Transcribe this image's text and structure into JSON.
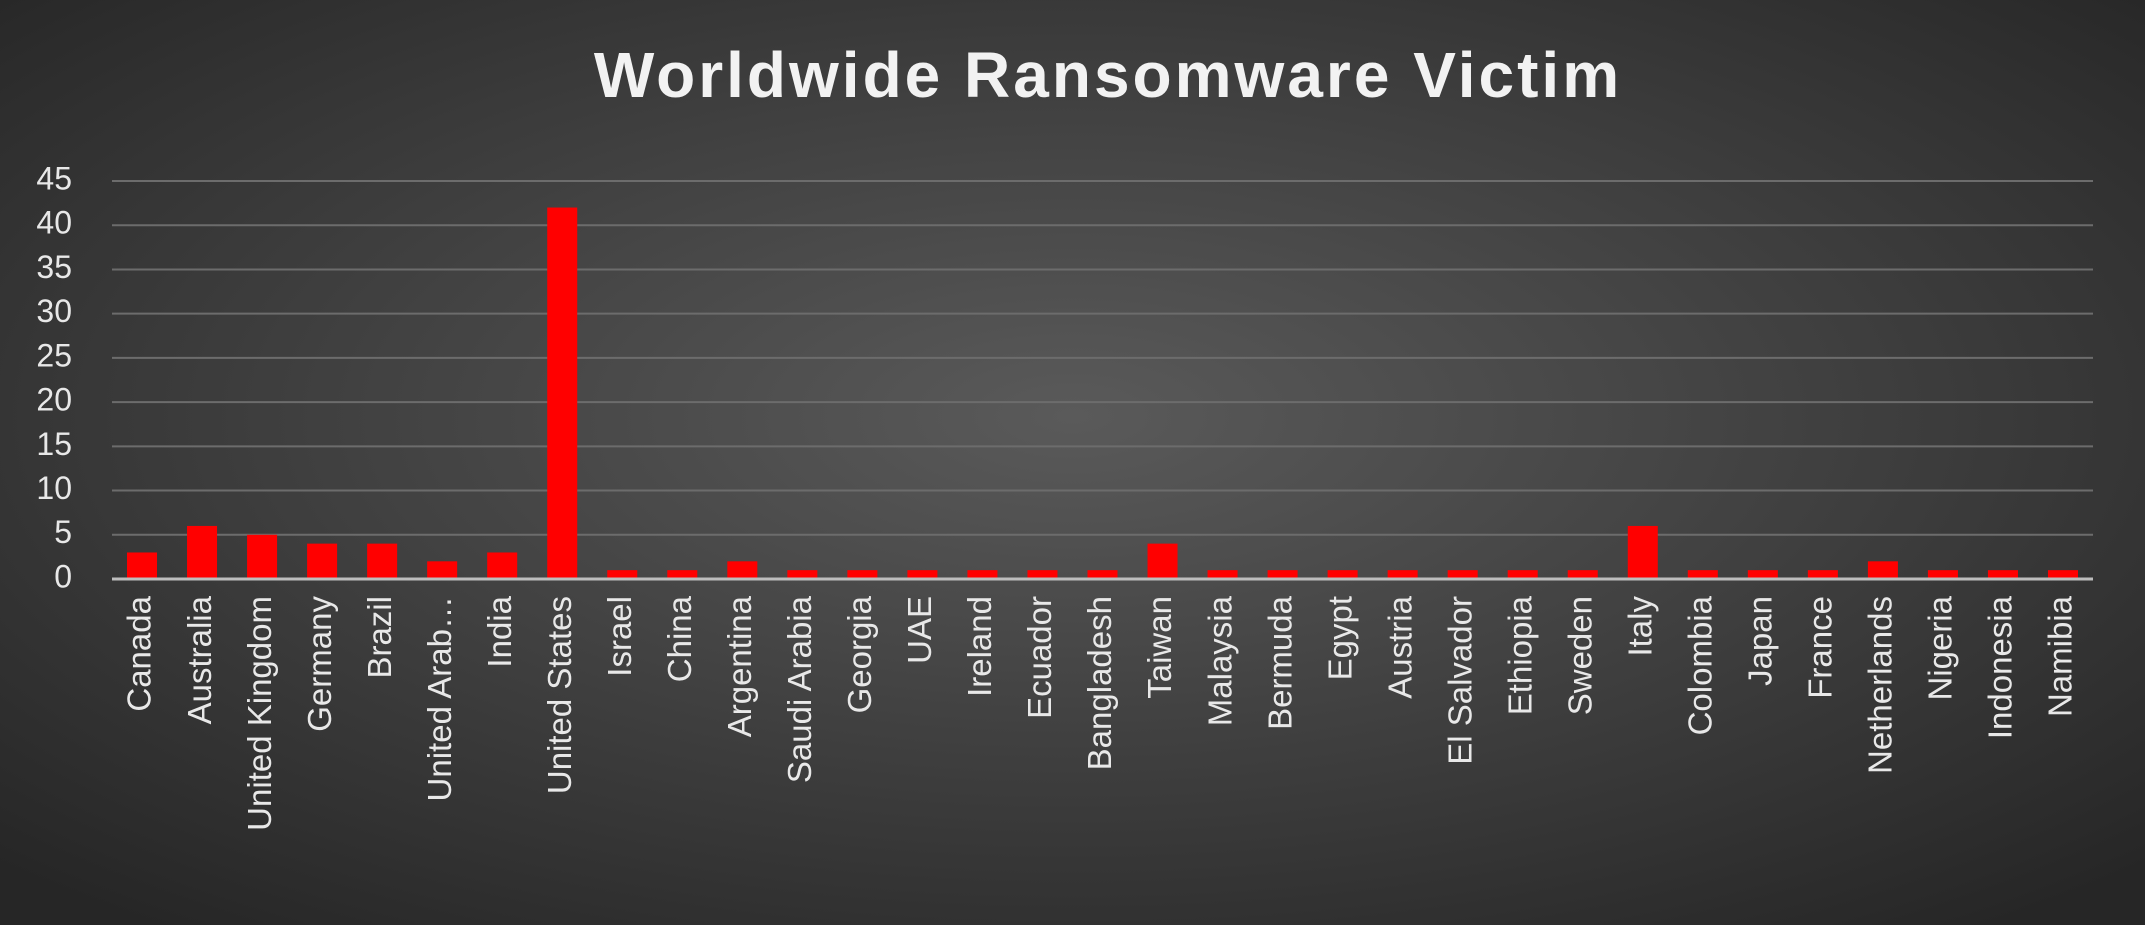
{
  "chart_data": {
    "type": "bar",
    "title": "Worldwide Ransomware Victim",
    "categories": [
      "Canada",
      "Australia",
      "United Kingdom",
      "Germany",
      "Brazil",
      "United Arab…",
      "India",
      "United States",
      "Israel",
      "China",
      "Argentina",
      "Saudi Arabia",
      "Georgia",
      "UAE",
      "Ireland",
      "Ecuador",
      "Bangladesh",
      "Taiwan",
      "Malaysia",
      "Bermuda",
      "Egypt",
      "Austria",
      "El Salvador",
      "Ethiopia",
      "Sweden",
      "Italy",
      "Colombia",
      "Japan",
      "France",
      "Netherlands",
      "Nigeria",
      "Indonesia",
      "Namibia"
    ],
    "values": [
      3,
      6,
      5,
      4,
      4,
      2,
      3,
      42,
      1,
      1,
      2,
      1,
      1,
      1,
      1,
      1,
      1,
      4,
      1,
      1,
      1,
      1,
      1,
      1,
      1,
      6,
      1,
      1,
      1,
      2,
      1,
      1,
      1
    ],
    "color": "#ff0000",
    "ylim": [
      0,
      45
    ],
    "yticks": [
      0,
      5,
      10,
      15,
      20,
      25,
      30,
      35,
      40,
      45
    ],
    "grid": true
  }
}
